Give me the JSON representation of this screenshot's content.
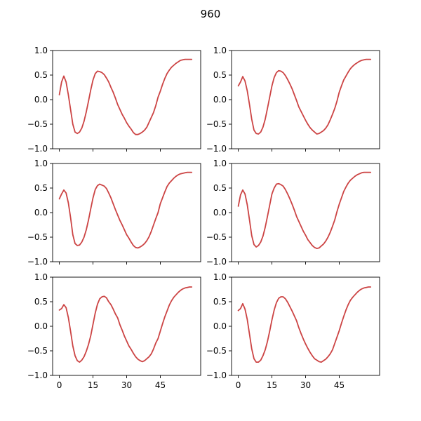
{
  "figure": {
    "title": "960"
  },
  "chart_data": {
    "type": "line",
    "layout": "3 rows x 2 columns",
    "shared_axes": true,
    "xlim": [
      -3,
      63
    ],
    "ylim": [
      -1.0,
      1.0
    ],
    "xticks": [
      0,
      15,
      30,
      45
    ],
    "xtick_labels": [
      "0",
      "15",
      "30",
      "45"
    ],
    "yticks": [
      1.0,
      0.5,
      0.0,
      -0.5,
      -1.0
    ],
    "ytick_labels": [
      "1.0",
      "0.5",
      "0.0",
      "−0.5",
      "−1.0"
    ],
    "line_color": "#cc4444",
    "panels": [
      {
        "x": [
          0,
          1,
          2,
          3,
          4,
          5,
          6,
          7,
          8,
          9,
          10,
          11,
          12,
          13,
          14,
          15,
          16,
          17,
          18,
          19,
          20,
          21,
          22,
          23,
          24,
          25,
          26,
          27,
          28,
          29,
          30,
          31,
          32,
          33,
          34,
          35,
          36,
          37,
          38,
          39,
          40,
          41,
          42,
          43,
          44,
          45,
          46,
          47,
          48,
          49,
          50,
          51,
          52,
          53,
          54,
          55,
          56,
          57,
          58,
          59
        ],
        "y": [
          0.1,
          0.36,
          0.48,
          0.36,
          0.1,
          -0.2,
          -0.5,
          -0.66,
          -0.69,
          -0.66,
          -0.58,
          -0.44,
          -0.25,
          -0.03,
          0.2,
          0.4,
          0.53,
          0.58,
          0.57,
          0.55,
          0.51,
          0.44,
          0.36,
          0.25,
          0.15,
          0.03,
          -0.1,
          -0.2,
          -0.3,
          -0.38,
          -0.47,
          -0.54,
          -0.6,
          -0.67,
          -0.71,
          -0.71,
          -0.69,
          -0.66,
          -0.62,
          -0.56,
          -0.46,
          -0.36,
          -0.26,
          -0.12,
          0.05,
          0.17,
          0.31,
          0.43,
          0.53,
          0.6,
          0.66,
          0.7,
          0.74,
          0.77,
          0.8,
          0.81,
          0.82,
          0.82,
          0.82,
          0.82
        ]
      },
      {
        "x": [
          0,
          1,
          2,
          3,
          4,
          5,
          6,
          7,
          8,
          9,
          10,
          11,
          12,
          13,
          14,
          15,
          16,
          17,
          18,
          19,
          20,
          21,
          22,
          23,
          24,
          25,
          26,
          27,
          28,
          29,
          30,
          31,
          32,
          33,
          34,
          35,
          36,
          37,
          38,
          39,
          40,
          41,
          42,
          43,
          44,
          45,
          46,
          47,
          48,
          49,
          50,
          51,
          52,
          53,
          54,
          55,
          56,
          57,
          58,
          59
        ],
        "y": [
          0.28,
          0.36,
          0.47,
          0.38,
          0.18,
          -0.1,
          -0.4,
          -0.62,
          -0.69,
          -0.7,
          -0.66,
          -0.56,
          -0.4,
          -0.18,
          0.05,
          0.28,
          0.45,
          0.55,
          0.59,
          0.58,
          0.55,
          0.49,
          0.41,
          0.32,
          0.22,
          0.1,
          -0.02,
          -0.15,
          -0.24,
          -0.33,
          -0.42,
          -0.5,
          -0.57,
          -0.62,
          -0.66,
          -0.7,
          -0.69,
          -0.66,
          -0.63,
          -0.58,
          -0.51,
          -0.41,
          -0.3,
          -0.18,
          -0.03,
          0.15,
          0.28,
          0.4,
          0.48,
          0.56,
          0.63,
          0.68,
          0.72,
          0.75,
          0.78,
          0.8,
          0.81,
          0.82,
          0.82,
          0.82
        ]
      },
      {
        "x": [
          0,
          1,
          2,
          3,
          4,
          5,
          6,
          7,
          8,
          9,
          10,
          11,
          12,
          13,
          14,
          15,
          16,
          17,
          18,
          19,
          20,
          21,
          22,
          23,
          24,
          25,
          26,
          27,
          28,
          29,
          30,
          31,
          32,
          33,
          34,
          35,
          36,
          37,
          38,
          39,
          40,
          41,
          42,
          43,
          44,
          45,
          46,
          47,
          48,
          49,
          50,
          51,
          52,
          53,
          54,
          55,
          56,
          57,
          58,
          59
        ],
        "y": [
          0.28,
          0.38,
          0.46,
          0.4,
          0.2,
          -0.1,
          -0.45,
          -0.63,
          -0.67,
          -0.66,
          -0.6,
          -0.5,
          -0.35,
          -0.15,
          0.08,
          0.3,
          0.47,
          0.55,
          0.58,
          0.56,
          0.54,
          0.49,
          0.4,
          0.3,
          0.18,
          0.06,
          -0.05,
          -0.16,
          -0.25,
          -0.35,
          -0.45,
          -0.52,
          -0.6,
          -0.67,
          -0.71,
          -0.72,
          -0.7,
          -0.67,
          -0.63,
          -0.57,
          -0.49,
          -0.38,
          -0.25,
          -0.12,
          0.0,
          0.18,
          0.3,
          0.42,
          0.53,
          0.6,
          0.65,
          0.7,
          0.74,
          0.77,
          0.79,
          0.8,
          0.81,
          0.82,
          0.82,
          0.82
        ]
      },
      {
        "x": [
          0,
          1,
          2,
          3,
          4,
          5,
          6,
          7,
          8,
          9,
          10,
          11,
          12,
          13,
          14,
          15,
          16,
          17,
          18,
          19,
          20,
          21,
          22,
          23,
          24,
          25,
          26,
          27,
          28,
          29,
          30,
          31,
          32,
          33,
          34,
          35,
          36,
          37,
          38,
          39,
          40,
          41,
          42,
          43,
          44,
          45,
          46,
          47,
          48,
          49,
          50,
          51,
          52,
          53,
          54,
          55,
          56,
          57,
          58,
          59
        ],
        "y": [
          0.13,
          0.36,
          0.46,
          0.38,
          0.16,
          -0.15,
          -0.47,
          -0.65,
          -0.7,
          -0.67,
          -0.6,
          -0.48,
          -0.3,
          -0.08,
          0.15,
          0.38,
          0.5,
          0.58,
          0.59,
          0.57,
          0.54,
          0.47,
          0.38,
          0.28,
          0.17,
          0.05,
          -0.08,
          -0.18,
          -0.28,
          -0.38,
          -0.46,
          -0.55,
          -0.61,
          -0.67,
          -0.71,
          -0.73,
          -0.72,
          -0.68,
          -0.64,
          -0.58,
          -0.5,
          -0.4,
          -0.28,
          -0.15,
          0.02,
          0.17,
          0.3,
          0.43,
          0.52,
          0.6,
          0.66,
          0.7,
          0.74,
          0.77,
          0.79,
          0.81,
          0.82,
          0.82,
          0.82,
          0.82
        ]
      },
      {
        "x": [
          0,
          1,
          2,
          3,
          4,
          5,
          6,
          7,
          8,
          9,
          10,
          11,
          12,
          13,
          14,
          15,
          16,
          17,
          18,
          19,
          20,
          21,
          22,
          23,
          24,
          25,
          26,
          27,
          28,
          29,
          30,
          31,
          32,
          33,
          34,
          35,
          36,
          37,
          38,
          39,
          40,
          41,
          42,
          43,
          44,
          45,
          46,
          47,
          48,
          49,
          50,
          51,
          52,
          53,
          54,
          55,
          56,
          57,
          58,
          59
        ],
        "y": [
          0.33,
          0.36,
          0.44,
          0.38,
          0.18,
          -0.1,
          -0.4,
          -0.6,
          -0.7,
          -0.73,
          -0.69,
          -0.62,
          -0.51,
          -0.37,
          -0.19,
          0.04,
          0.27,
          0.45,
          0.56,
          0.6,
          0.61,
          0.58,
          0.5,
          0.44,
          0.35,
          0.25,
          0.17,
          0.03,
          -0.08,
          -0.2,
          -0.3,
          -0.4,
          -0.47,
          -0.55,
          -0.62,
          -0.67,
          -0.7,
          -0.72,
          -0.7,
          -0.66,
          -0.62,
          -0.56,
          -0.46,
          -0.34,
          -0.25,
          -0.1,
          0.05,
          0.19,
          0.31,
          0.43,
          0.52,
          0.59,
          0.64,
          0.69,
          0.73,
          0.76,
          0.78,
          0.79,
          0.8,
          0.8
        ]
      },
      {
        "x": [
          0,
          1,
          2,
          3,
          4,
          5,
          6,
          7,
          8,
          9,
          10,
          11,
          12,
          13,
          14,
          15,
          16,
          17,
          18,
          19,
          20,
          21,
          22,
          23,
          24,
          25,
          26,
          27,
          28,
          29,
          30,
          31,
          32,
          33,
          34,
          35,
          36,
          37,
          38,
          39,
          40,
          41,
          42,
          43,
          44,
          45,
          46,
          47,
          48,
          49,
          50,
          51,
          52,
          53,
          54,
          55,
          56,
          57,
          58,
          59
        ],
        "y": [
          0.32,
          0.36,
          0.46,
          0.35,
          0.14,
          -0.16,
          -0.46,
          -0.66,
          -0.73,
          -0.73,
          -0.69,
          -0.6,
          -0.48,
          -0.31,
          -0.1,
          0.13,
          0.33,
          0.48,
          0.57,
          0.6,
          0.6,
          0.56,
          0.49,
          0.4,
          0.31,
          0.21,
          0.11,
          -0.03,
          -0.15,
          -0.26,
          -0.36,
          -0.45,
          -0.53,
          -0.6,
          -0.66,
          -0.69,
          -0.72,
          -0.73,
          -0.7,
          -0.67,
          -0.62,
          -0.56,
          -0.48,
          -0.35,
          -0.22,
          -0.09,
          0.06,
          0.2,
          0.33,
          0.44,
          0.53,
          0.59,
          0.64,
          0.69,
          0.73,
          0.76,
          0.78,
          0.79,
          0.8,
          0.8
        ]
      }
    ]
  }
}
